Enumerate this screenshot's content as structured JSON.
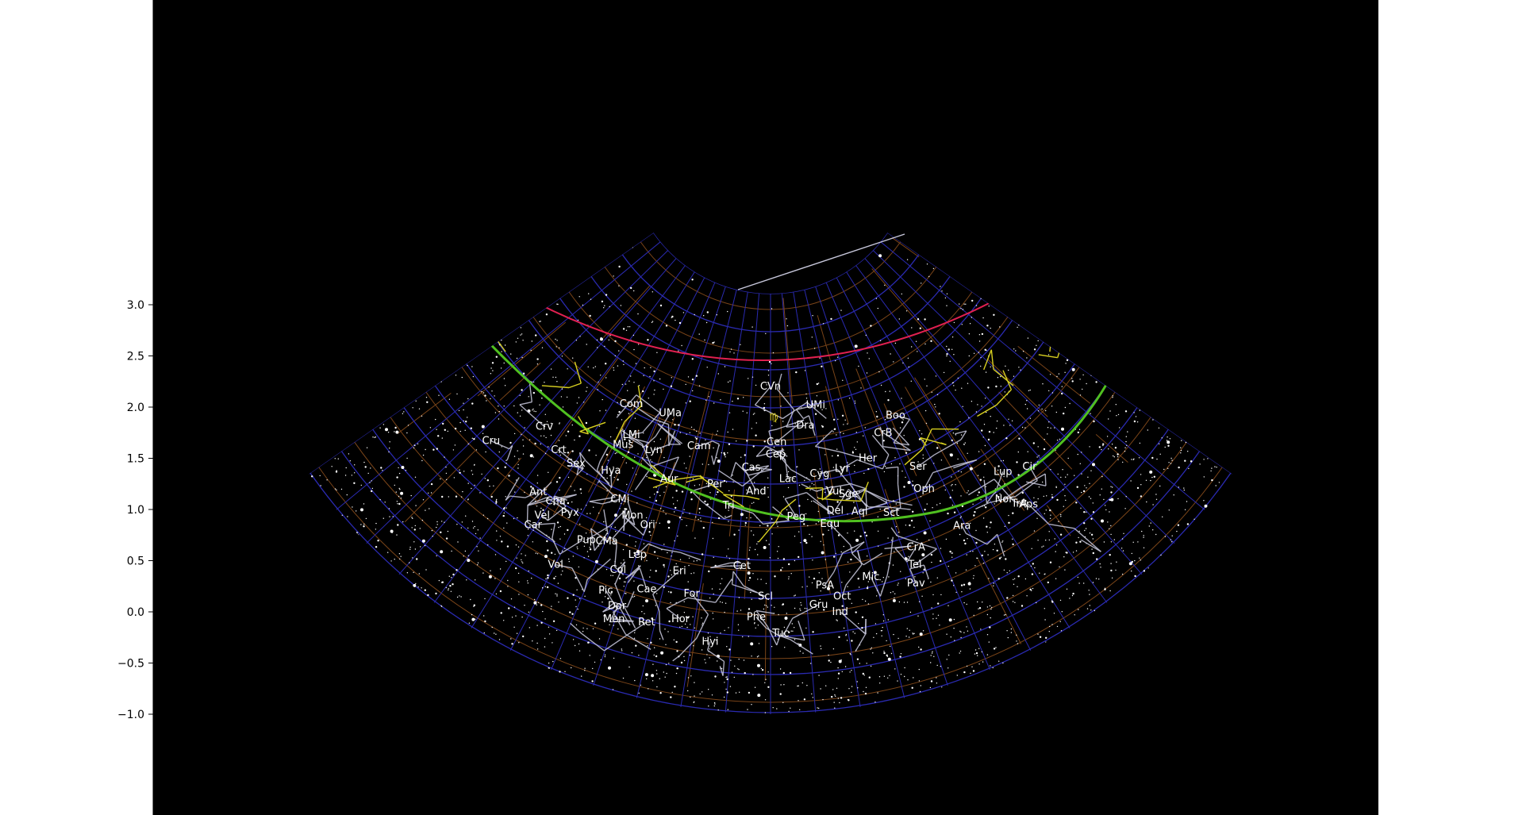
{
  "chart_data": {
    "type": "scatter",
    "title": "",
    "xlabel": "",
    "ylabel": "",
    "ylim": [
      -1.0,
      3.0
    ],
    "yticks": [
      {
        "value": 3.0,
        "label": "3.0"
      },
      {
        "value": 2.5,
        "label": "2.5"
      },
      {
        "value": 2.0,
        "label": "2.0"
      },
      {
        "value": 1.5,
        "label": "1.5"
      },
      {
        "value": 1.0,
        "label": "1.0"
      },
      {
        "value": 0.5,
        "label": "0.5"
      },
      {
        "value": 0.0,
        "label": "0.0"
      },
      {
        "value": -0.5,
        "label": "−0.5"
      },
      {
        "value": -1.0,
        "label": "−1.0"
      }
    ],
    "background": "#000000",
    "colors": {
      "stars": "#ffffff",
      "constellation_lines": "#c8c8dc",
      "zodiac_lines": "#d8d020",
      "ecliptic": "#50c020",
      "celestial_equator": "#e02050",
      "coordinate_grid": "#2a2ab0",
      "boundaries": "#7a4418"
    },
    "constellation_labels": [
      {
        "name": "CVn",
        "x": 0.0,
        "y": 2.2
      },
      {
        "name": "UMi",
        "x": 0.44,
        "y": 2.02
      },
      {
        "name": "Com",
        "x": -1.36,
        "y": 2.03
      },
      {
        "name": "UMa",
        "x": -0.98,
        "y": 1.94
      },
      {
        "name": "Crv",
        "x": -2.21,
        "y": 1.81
      },
      {
        "name": "Cru",
        "x": -2.73,
        "y": 1.67
      },
      {
        "name": "Dra",
        "x": 0.34,
        "y": 1.82
      },
      {
        "name": "Boo",
        "x": 1.22,
        "y": 1.92
      },
      {
        "name": "LMi",
        "x": -1.36,
        "y": 1.73
      },
      {
        "name": "CrB",
        "x": 1.1,
        "y": 1.75
      },
      {
        "name": "Mus",
        "x": -1.44,
        "y": 1.63
      },
      {
        "name": "Crt",
        "x": -2.07,
        "y": 1.58
      },
      {
        "name": "Lyn",
        "x": -1.14,
        "y": 1.58
      },
      {
        "name": "Cam",
        "x": -0.7,
        "y": 1.62
      },
      {
        "name": "Cen",
        "x": 0.06,
        "y": 1.66
      },
      {
        "name": "Cep",
        "x": 0.05,
        "y": 1.54
      },
      {
        "name": "Sex",
        "x": -1.9,
        "y": 1.45
      },
      {
        "name": "Her",
        "x": 0.95,
        "y": 1.5
      },
      {
        "name": "Hya",
        "x": -1.56,
        "y": 1.38
      },
      {
        "name": "Cas",
        "x": -0.19,
        "y": 1.41
      },
      {
        "name": "Lyr",
        "x": 0.7,
        "y": 1.4
      },
      {
        "name": "Ser",
        "x": 1.44,
        "y": 1.42
      },
      {
        "name": "Lup",
        "x": 2.27,
        "y": 1.37
      },
      {
        "name": "Cir",
        "x": 2.53,
        "y": 1.42
      },
      {
        "name": "Cyg",
        "x": 0.48,
        "y": 1.35
      },
      {
        "name": "Aur",
        "x": -0.99,
        "y": 1.3
      },
      {
        "name": "Lac",
        "x": 0.17,
        "y": 1.3
      },
      {
        "name": "Per",
        "x": -0.54,
        "y": 1.25
      },
      {
        "name": "Oph",
        "x": 1.5,
        "y": 1.2
      },
      {
        "name": "And",
        "x": -0.14,
        "y": 1.18
      },
      {
        "name": "Ant",
        "x": -2.27,
        "y": 1.17
      },
      {
        "name": "Vul",
        "x": 0.62,
        "y": 1.18
      },
      {
        "name": "Sge",
        "x": 0.76,
        "y": 1.15
      },
      {
        "name": "CMi",
        "x": -1.47,
        "y": 1.1
      },
      {
        "name": "Cha",
        "x": -2.1,
        "y": 1.08
      },
      {
        "name": "Nor",
        "x": 2.28,
        "y": 1.1
      },
      {
        "name": "TrA",
        "x": 2.43,
        "y": 1.06
      },
      {
        "name": "Aps",
        "x": 2.52,
        "y": 1.05
      },
      {
        "name": "Tri",
        "x": -0.41,
        "y": 1.04
      },
      {
        "name": "Del",
        "x": 0.63,
        "y": 0.99
      },
      {
        "name": "Pyx",
        "x": -1.96,
        "y": 0.97
      },
      {
        "name": "Aql",
        "x": 0.87,
        "y": 0.98
      },
      {
        "name": "Sct",
        "x": 1.18,
        "y": 0.97
      },
      {
        "name": "Vel",
        "x": -2.23,
        "y": 0.94
      },
      {
        "name": "Mon",
        "x": -1.35,
        "y": 0.94
      },
      {
        "name": "Peg",
        "x": 0.25,
        "y": 0.93
      },
      {
        "name": "Equ",
        "x": 0.58,
        "y": 0.86
      },
      {
        "name": "Car",
        "x": -2.32,
        "y": 0.85
      },
      {
        "name": "Ori",
        "x": -1.2,
        "y": 0.85
      },
      {
        "name": "Ara",
        "x": 1.87,
        "y": 0.84
      },
      {
        "name": "Pup",
        "x": -1.8,
        "y": 0.7
      },
      {
        "name": "CMa",
        "x": -1.6,
        "y": 0.69
      },
      {
        "name": "CrA",
        "x": 1.42,
        "y": 0.63
      },
      {
        "name": "Lep",
        "x": -1.3,
        "y": 0.56
      },
      {
        "name": "Vol",
        "x": -2.1,
        "y": 0.46
      },
      {
        "name": "Cet",
        "x": -0.28,
        "y": 0.45
      },
      {
        "name": "Tel",
        "x": 1.41,
        "y": 0.46
      },
      {
        "name": "Col",
        "x": -1.49,
        "y": 0.41
      },
      {
        "name": "Eri",
        "x": -0.89,
        "y": 0.4
      },
      {
        "name": "Mic",
        "x": 0.98,
        "y": 0.34
      },
      {
        "name": "PsA",
        "x": 0.53,
        "y": 0.26
      },
      {
        "name": "Pav",
        "x": 1.42,
        "y": 0.28
      },
      {
        "name": "Pic",
        "x": -1.61,
        "y": 0.21
      },
      {
        "name": "Cae",
        "x": -1.21,
        "y": 0.22
      },
      {
        "name": "For",
        "x": -0.77,
        "y": 0.18
      },
      {
        "name": "Scl",
        "x": -0.05,
        "y": 0.15
      },
      {
        "name": "Oct",
        "x": 0.7,
        "y": 0.15
      },
      {
        "name": "Dor",
        "x": -1.5,
        "y": 0.06
      },
      {
        "name": "Gru",
        "x": 0.47,
        "y": 0.07
      },
      {
        "name": "Ind",
        "x": 0.68,
        "y": 0.0
      },
      {
        "name": "Men",
        "x": -1.53,
        "y": -0.07
      },
      {
        "name": "Hor",
        "x": -0.88,
        "y": -0.07
      },
      {
        "name": "Phe",
        "x": -0.14,
        "y": -0.05
      },
      {
        "name": "Ret",
        "x": -1.21,
        "y": -0.1
      },
      {
        "name": "Tuc",
        "x": 0.1,
        "y": -0.21
      },
      {
        "name": "Hyi",
        "x": -0.59,
        "y": -0.29
      }
    ],
    "zodiac_labels": [
      {
        "name": "♍",
        "x": 0.03,
        "y": 1.9
      }
    ]
  }
}
